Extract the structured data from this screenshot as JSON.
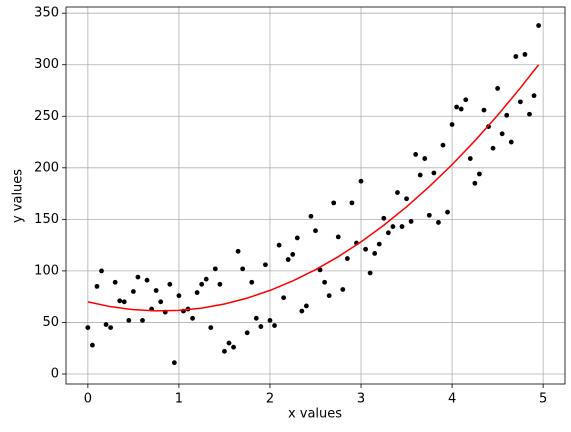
{
  "chart_data": {
    "type": "scatter",
    "x_label": "x values",
    "y_label": "y values",
    "xlim": [
      -0.24,
      5.24
    ],
    "ylim": [
      -9.7,
      356
    ],
    "xticks": [
      0,
      1,
      2,
      3,
      4,
      5
    ],
    "yticks": [
      0,
      50,
      100,
      150,
      200,
      250,
      300,
      350
    ],
    "grid": true,
    "series": [
      {
        "type": "scatter",
        "color": "#000000",
        "x": [
          0,
          0.05,
          0.1,
          0.15,
          0.2,
          0.25,
          0.3,
          0.35,
          0.4,
          0.45,
          0.5,
          0.55,
          0.6,
          0.65,
          0.7,
          0.75,
          0.8,
          0.85,
          0.9,
          0.95,
          1,
          1.05,
          1.1,
          1.15,
          1.2,
          1.25,
          1.3,
          1.35,
          1.4,
          1.45,
          1.5,
          1.55,
          1.6,
          1.65,
          1.7,
          1.75,
          1.8,
          1.85,
          1.9,
          1.95,
          2,
          2.05,
          2.1,
          2.15,
          2.2,
          2.25,
          2.3,
          2.35,
          2.4,
          2.45,
          2.5,
          2.55,
          2.6,
          2.65,
          2.7,
          2.75,
          2.8,
          2.85,
          2.9,
          2.95,
          3,
          3.05,
          3.1,
          3.15,
          3.2,
          3.25,
          3.3,
          3.35,
          3.4,
          3.45,
          3.5,
          3.55,
          3.6,
          3.65,
          3.7,
          3.75,
          3.8,
          3.85,
          3.9,
          3.95,
          4,
          4.05,
          4.1,
          4.15,
          4.2,
          4.25,
          4.3,
          4.35,
          4.4,
          4.45,
          4.5,
          4.55,
          4.6,
          4.65,
          4.7,
          4.75,
          4.8,
          4.85,
          4.9,
          4.95
        ],
        "values": [
          45,
          28,
          85,
          100,
          48,
          45,
          89,
          71,
          70,
          52,
          80,
          94,
          52,
          91,
          63,
          81,
          70,
          60,
          87,
          11,
          76,
          61,
          63,
          54,
          79,
          87,
          92,
          45,
          102,
          87,
          22,
          30,
          26,
          119,
          102,
          40,
          89,
          54,
          46,
          106,
          52,
          47,
          125,
          74,
          111,
          116,
          132,
          61,
          66,
          153,
          139,
          101,
          89,
          76,
          166,
          133,
          82,
          112,
          166,
          127,
          187,
          121,
          98,
          117,
          126,
          151,
          137,
          143,
          176,
          143,
          170,
          148,
          213,
          193,
          209,
          154,
          195,
          147,
          222,
          157,
          242,
          259,
          257,
          266,
          209,
          185,
          194,
          256,
          240,
          219,
          277,
          233,
          251,
          225,
          308,
          264,
          310,
          252,
          270,
          338
        ]
      },
      {
        "type": "line",
        "color": "#ff0000",
        "x": [
          0,
          0.25,
          0.5,
          0.75,
          1,
          1.25,
          1.5,
          1.75,
          2,
          2.25,
          2.5,
          2.75,
          3,
          3.25,
          3.5,
          3.75,
          4,
          4.25,
          4.5,
          4.75,
          4.95
        ],
        "values": [
          70,
          65.3,
          62.4,
          61.2,
          61.7,
          63.9,
          67.9,
          73.6,
          81.1,
          90.3,
          101.2,
          113.8,
          128.2,
          144.3,
          162.2,
          181.8,
          203.1,
          226.2,
          251,
          277.5,
          300
        ]
      }
    ]
  }
}
